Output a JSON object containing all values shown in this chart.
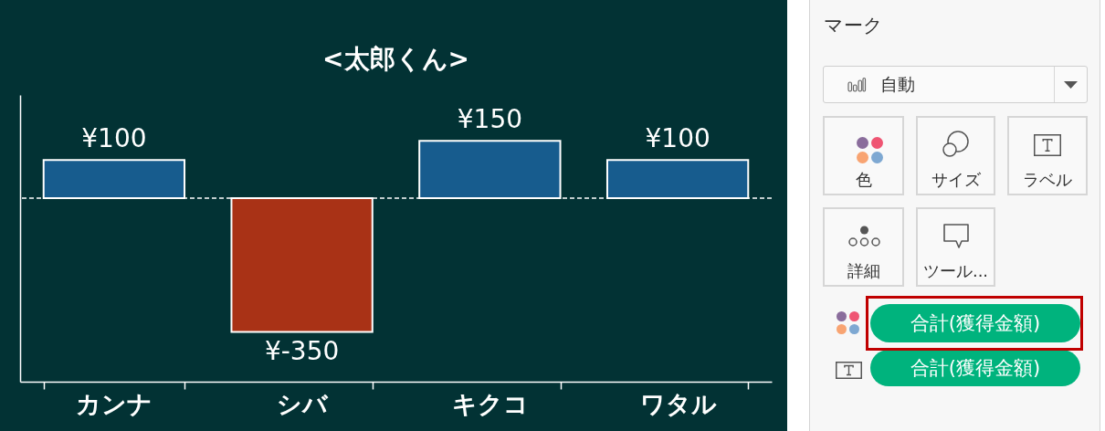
{
  "chart_data": [
    {
      "type": "bar",
      "title": "<太郎くん>",
      "categories": [
        "カンナ",
        "シバ",
        "キクコ",
        "ワタル"
      ],
      "values": [
        100,
        -350,
        150,
        100
      ],
      "colors": [
        "#175c8e",
        "#a93216",
        "#175c8e",
        "#175c8e"
      ],
      "value_labels": [
        "¥100",
        "¥-350",
        "¥150",
        "¥100"
      ],
      "ylim": [
        -480,
        270
      ],
      "ref_lines": [
        {
          "axis": "y",
          "value": 0,
          "color": "#ffffff",
          "line_style": "dashed"
        }
      ],
      "tick_labels": "x"
    },
    {
      "type": "other",
      "title": "マーク",
      "annotations": [
        "自動",
        "色",
        "サイズ",
        "ラベル",
        "詳細",
        "ツール...",
        "合計(獲得金額)",
        "合計(獲得金額)"
      ]
    }
  ]
}
